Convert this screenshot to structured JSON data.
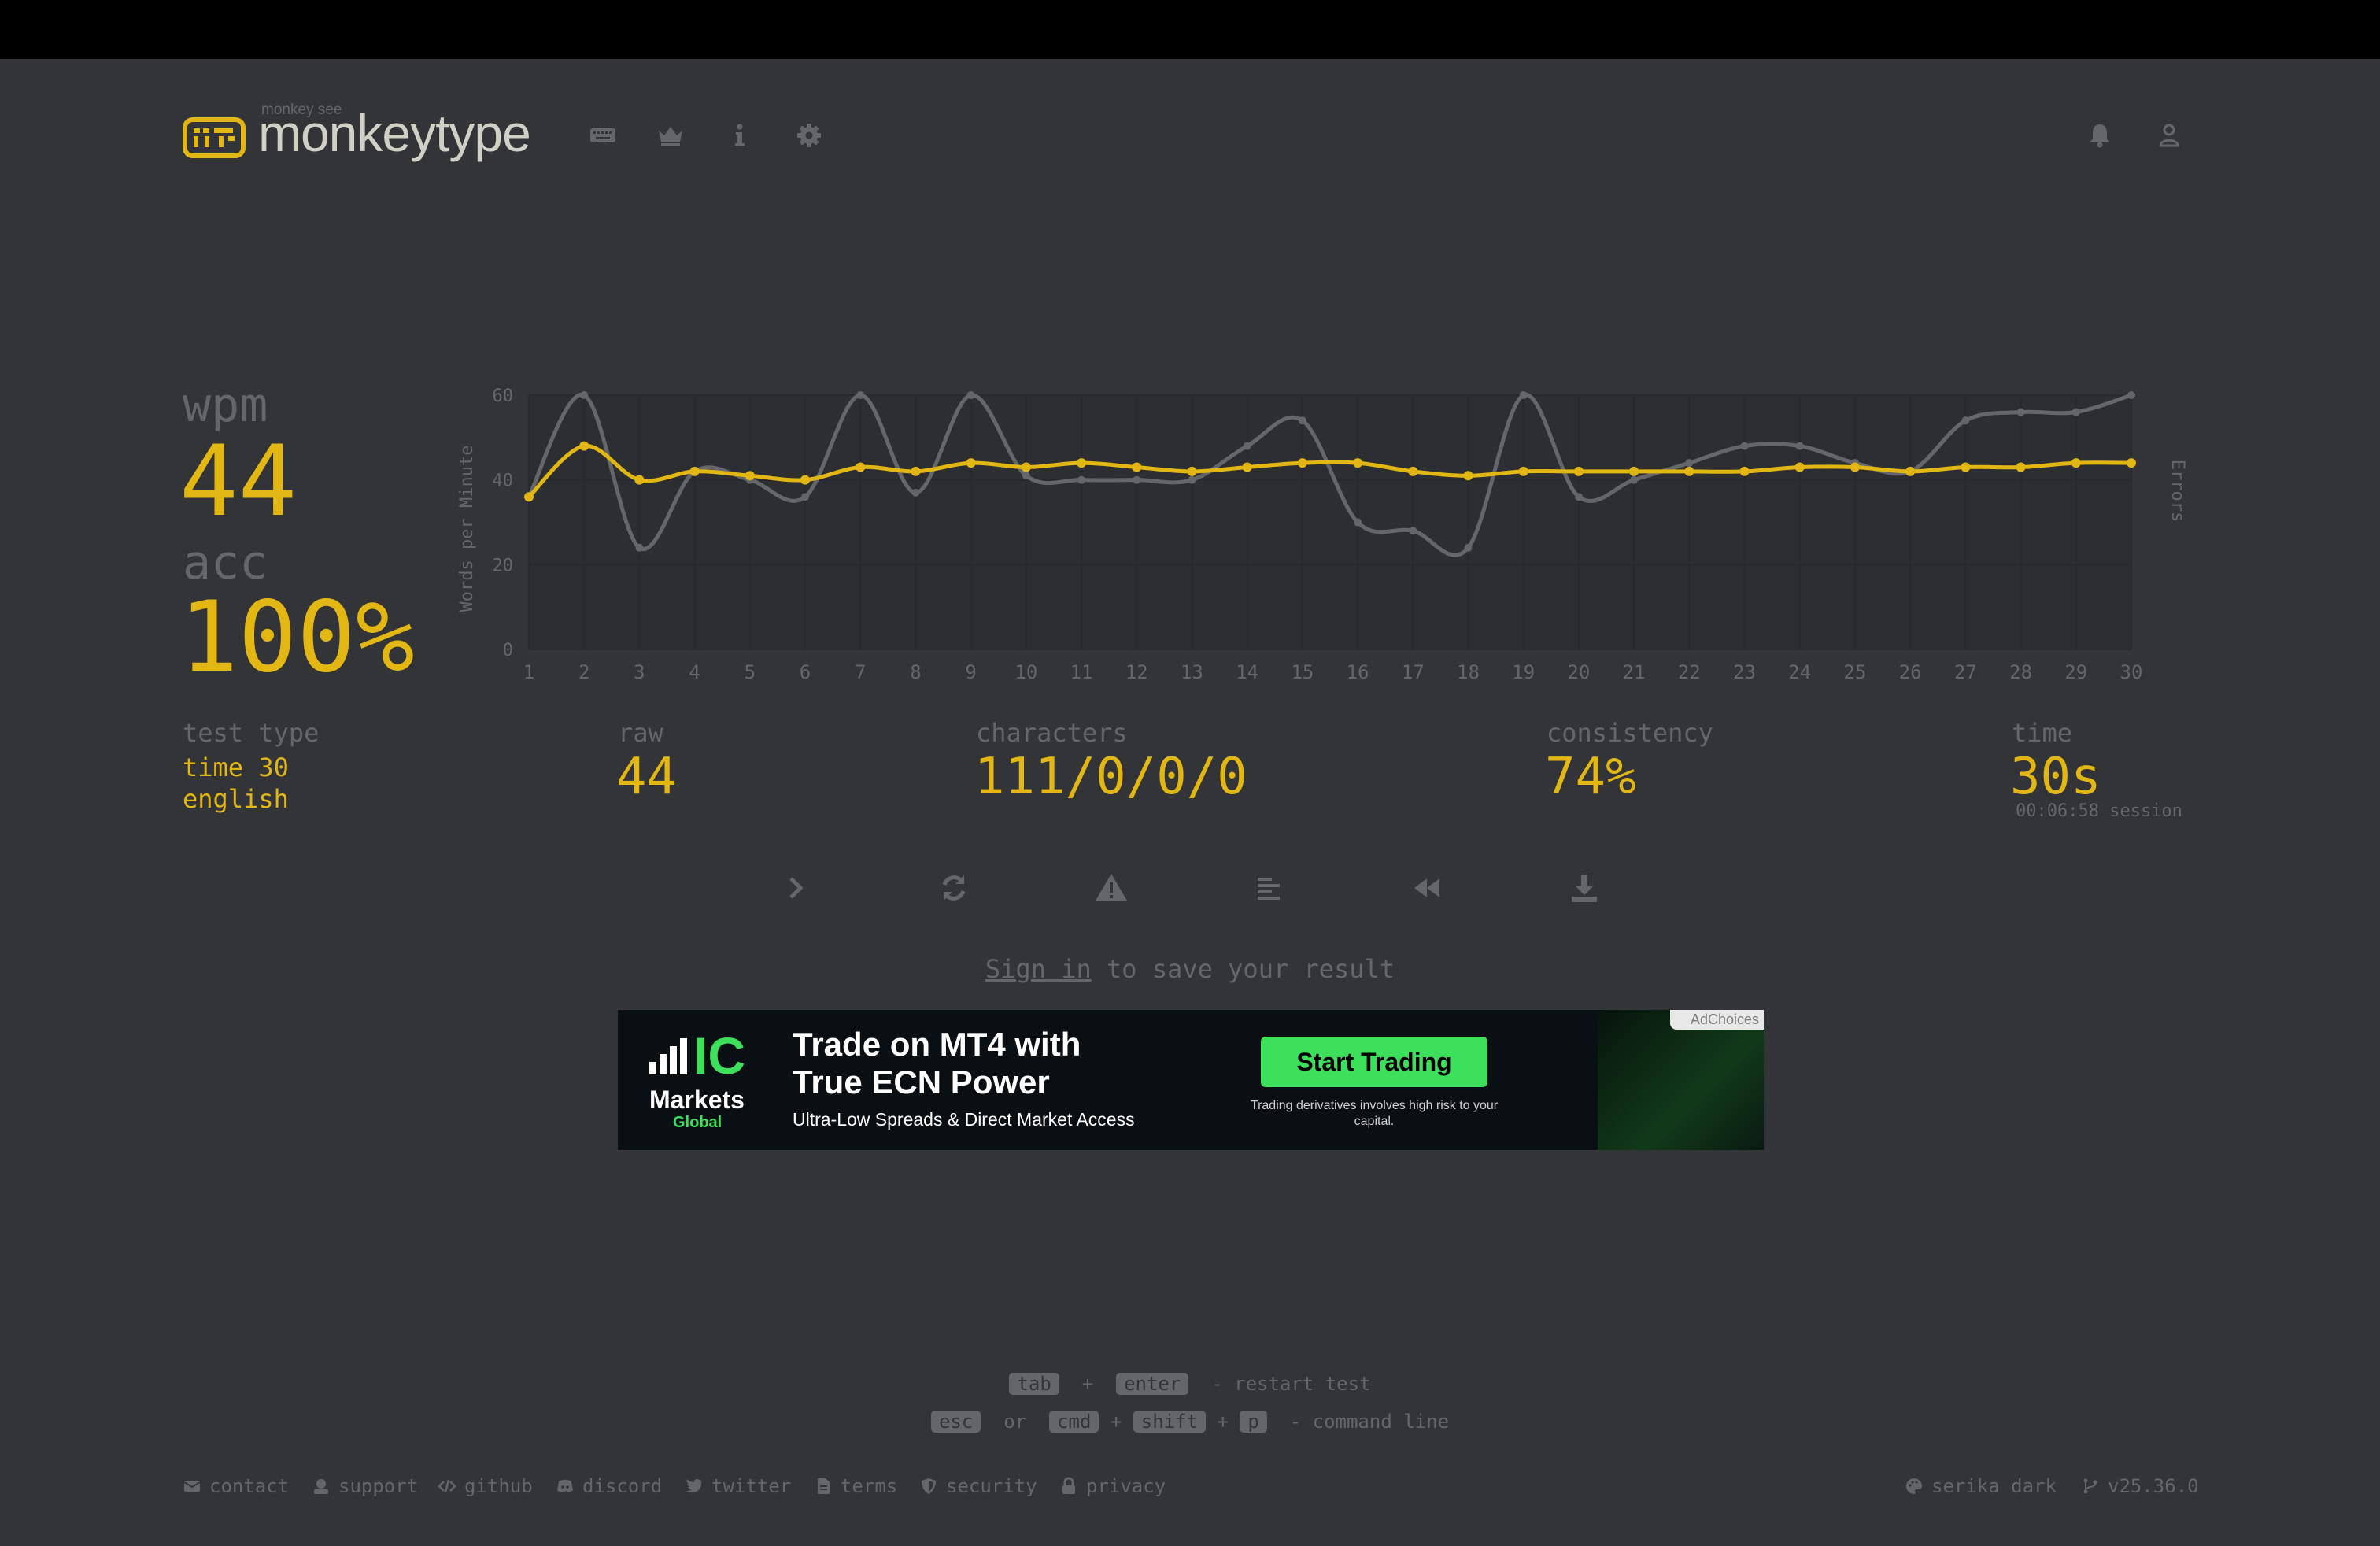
{
  "header": {
    "brand": "monkeytype",
    "tagline": "monkey see"
  },
  "colors": {
    "background": "#323437",
    "main": "#e2b714",
    "sub": "#646669",
    "text": "#d1d0c5",
    "raw_line": "#646669"
  },
  "icons": {
    "nav": [
      "keyboard-icon",
      "crown-icon",
      "info-icon",
      "gear-icon"
    ],
    "account": [
      "bell-icon",
      "user-icon"
    ]
  },
  "stats": {
    "wpm_label": "wpm",
    "wpm": "44",
    "acc_label": "acc",
    "acc": "100%",
    "test_type_label": "test type",
    "test_mode": "time 30",
    "language": "english",
    "raw_label": "raw",
    "raw": "44",
    "characters_label": "characters",
    "characters": "111/0/0/0",
    "consistency_label": "consistency",
    "consistency": "74%",
    "time_label": "time",
    "time": "30s",
    "session": "00:06:58 session"
  },
  "chart_data": {
    "type": "line",
    "ylabel": "Words per Minute",
    "y2label": "Errors",
    "ylim": [
      0,
      60
    ],
    "yticks": [
      0,
      20,
      40,
      60
    ],
    "x": [
      1,
      2,
      3,
      4,
      5,
      6,
      7,
      8,
      9,
      10,
      11,
      12,
      13,
      14,
      15,
      16,
      17,
      18,
      19,
      20,
      21,
      22,
      23,
      24,
      25,
      26,
      27,
      28,
      29,
      30
    ],
    "grid": true,
    "series": [
      {
        "name": "raw",
        "values": [
          36,
          60,
          24,
          42,
          40,
          36,
          60,
          37,
          60,
          41,
          40,
          40,
          40,
          48,
          54,
          30,
          28,
          24,
          60,
          36,
          40,
          44,
          48,
          48,
          44,
          42,
          54,
          56,
          56,
          60
        ]
      },
      {
        "name": "wpm",
        "values": [
          36,
          48,
          40,
          42,
          41,
          40,
          43,
          42,
          44,
          43,
          44,
          43,
          42,
          43,
          44,
          44,
          42,
          41,
          42,
          42,
          42,
          42,
          42,
          43,
          43,
          42,
          43,
          43,
          44,
          44
        ]
      }
    ]
  },
  "actions": [
    "next-test",
    "restart",
    "report",
    "word-history",
    "replay",
    "screenshot"
  ],
  "signin": {
    "link": "Sign in",
    "rest": " to save your result"
  },
  "ad": {
    "brand_top": "IC",
    "brand_mid": "Markets",
    "brand_bot": "Global",
    "headline_1": "Trade on MT4 with",
    "headline_2": "True ECN Power",
    "subline": "Ultra-Low Spreads & Direct Market Access",
    "cta": "Start Trading",
    "risk": "Trading derivatives involves high risk to your capital.",
    "badge": "AdChoices"
  },
  "hints": {
    "k_tab": "tab",
    "plus": "+",
    "k_enter": "enter",
    "restart": "- restart test",
    "k_esc": "esc",
    "or": "or",
    "k_cmd": "cmd",
    "k_shift": "shift",
    "k_p": "p",
    "command": "- command line"
  },
  "footer": {
    "contact": "contact",
    "support": "support",
    "github": "github",
    "discord": "discord",
    "twitter": "twitter",
    "terms": "terms",
    "security": "security",
    "privacy": "privacy",
    "theme": "serika dark",
    "version": "v25.36.0"
  }
}
